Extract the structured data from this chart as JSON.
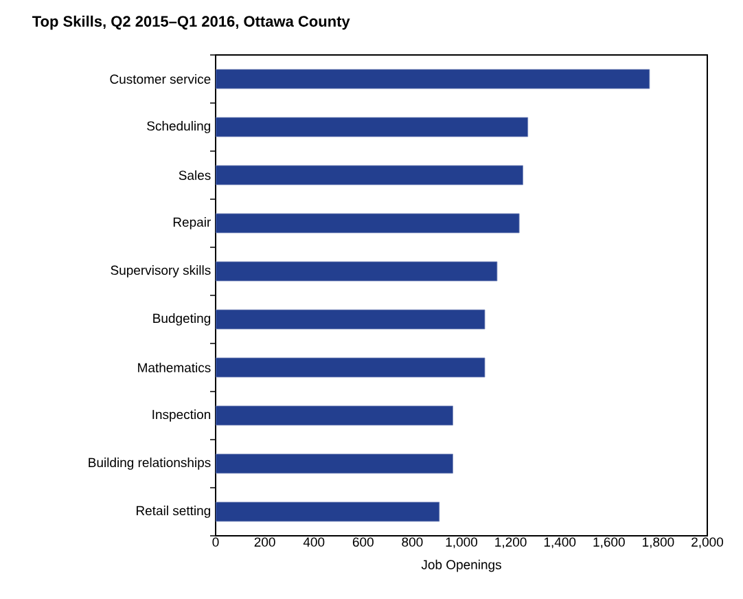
{
  "chart_data": {
    "type": "bar",
    "orientation": "horizontal",
    "title": "Top Skills, Q2 2015–Q1 2016, Ottawa County",
    "xlabel": "Job Openings",
    "categories": [
      "Customer service",
      "Scheduling",
      "Sales",
      "Repair",
      "Supervisory skills",
      "Budgeting",
      "Mathematics",
      "Inspection",
      "Building relationships",
      "Retail setting"
    ],
    "values": [
      1765,
      1270,
      1250,
      1235,
      1145,
      1095,
      1095,
      965,
      965,
      910
    ],
    "color": "#233f8f",
    "xlim": [
      0,
      2000
    ],
    "xticks": [
      0,
      200,
      400,
      600,
      800,
      {
        "value": 1000,
        "label": "1,000"
      },
      {
        "value": 1200,
        "label": "1,200"
      },
      {
        "value": 1400,
        "label": "1,400"
      },
      {
        "value": 1600,
        "label": "1,600"
      },
      {
        "value": 1800,
        "label": "1,800"
      },
      {
        "value": 2000,
        "label": "2,000"
      }
    ]
  }
}
